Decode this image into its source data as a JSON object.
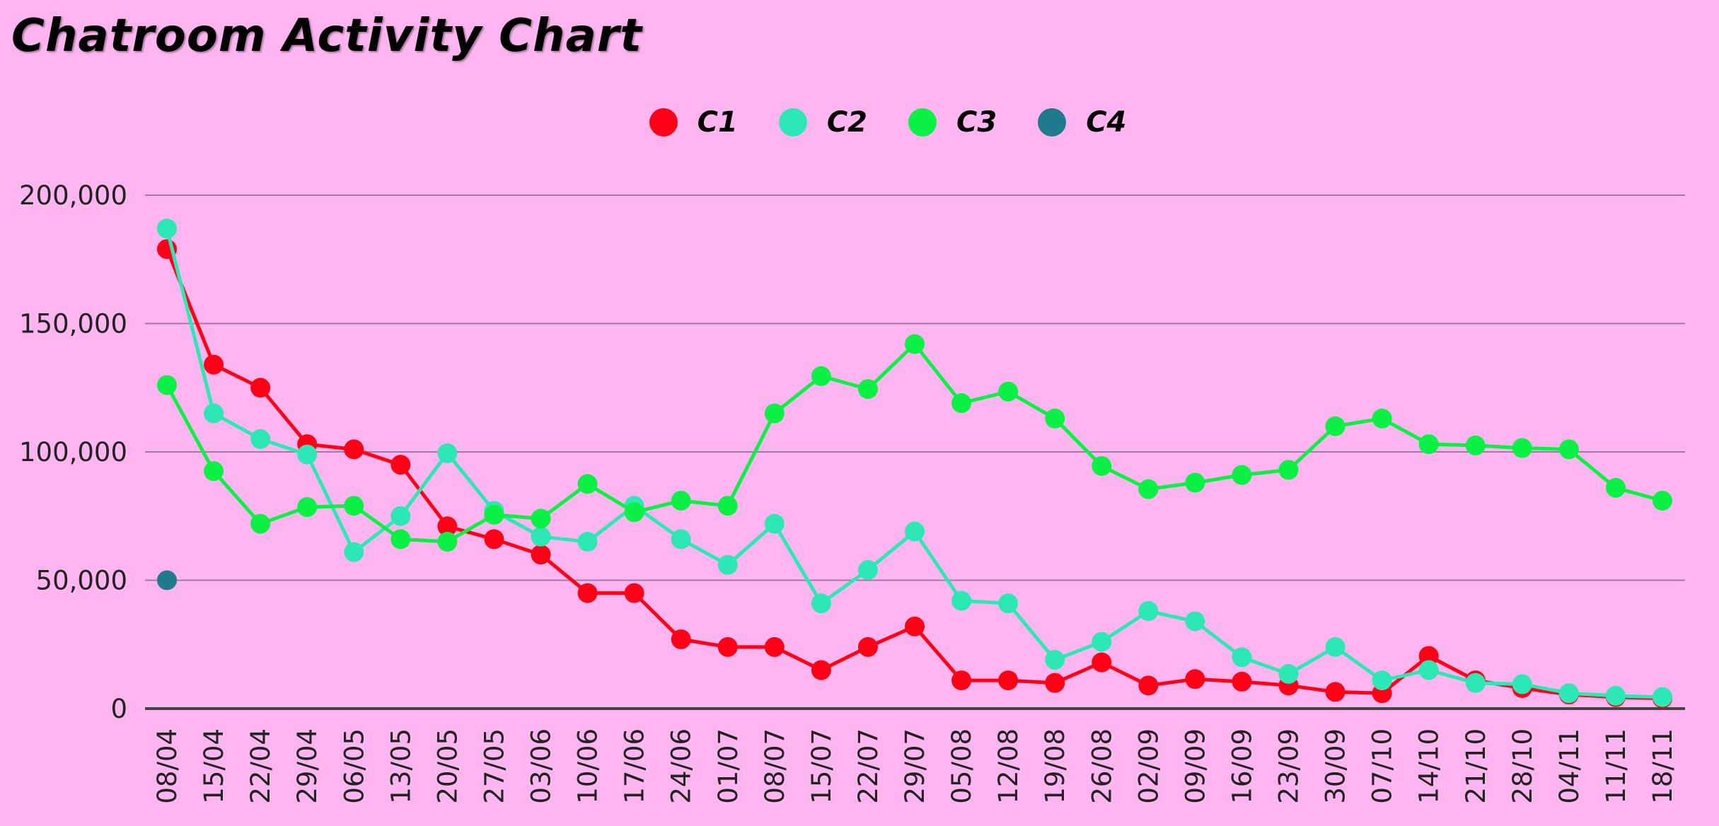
{
  "chart_data": {
    "type": "line",
    "title": "Chatroom Activity Chart",
    "xlabel": "",
    "ylabel": "",
    "ylim": [
      0,
      200000
    ],
    "yticks": [
      0,
      50000,
      100000,
      150000,
      200000
    ],
    "ytick_labels": [
      "0",
      "50,000",
      "100,000",
      "150,000",
      "200,000"
    ],
    "grid": true,
    "legend_position": "top-center",
    "categories": [
      "08/04",
      "15/04",
      "22/04",
      "29/04",
      "06/05",
      "13/05",
      "20/05",
      "27/05",
      "03/06",
      "10/06",
      "17/06",
      "24/06",
      "01/07",
      "08/07",
      "15/07",
      "22/07",
      "29/07",
      "05/08",
      "12/08",
      "19/08",
      "26/08",
      "02/09",
      "09/09",
      "16/09",
      "23/09",
      "30/09",
      "07/10",
      "14/10",
      "21/10",
      "28/10",
      "04/11",
      "11/11",
      "18/11"
    ],
    "series": [
      {
        "name": "C1",
        "color": "#ff0016",
        "values": [
          179000,
          134000,
          125000,
          103000,
          101000,
          95000,
          71000,
          66000,
          60000,
          45000,
          45000,
          27000,
          24000,
          24000,
          15000,
          24000,
          32000,
          11000,
          11000,
          10000,
          18000,
          9000,
          11500,
          10500,
          9000,
          6500,
          6000,
          20500,
          11000,
          8000,
          5500,
          4500,
          4000
        ]
      },
      {
        "name": "C2",
        "color": "#2de8b4",
        "values": [
          187000,
          115000,
          105000,
          99000,
          61000,
          75000,
          99500,
          77000,
          67000,
          65000,
          79000,
          66000,
          56000,
          72000,
          41000,
          54000,
          69000,
          42000,
          41000,
          19000,
          26000,
          38000,
          34000,
          20000,
          13500,
          24000,
          11000,
          15000,
          10000,
          9500,
          6000,
          5000,
          4500
        ]
      },
      {
        "name": "C3",
        "color": "#0af045",
        "values": [
          126000,
          92500,
          72000,
          78500,
          79000,
          66000,
          65000,
          75500,
          74000,
          87500,
          76500,
          81000,
          79000,
          115000,
          129500,
          124500,
          142000,
          119000,
          123500,
          113000,
          94500,
          85500,
          88000,
          91000,
          93000,
          110000,
          113000,
          103000,
          102500,
          101500,
          101000,
          86000,
          81000
        ]
      },
      {
        "name": "C4",
        "color": "#1f7a8c",
        "values": [
          50000,
          null,
          null,
          null,
          null,
          null,
          null,
          null,
          null,
          null,
          null,
          null,
          null,
          null,
          null,
          null,
          null,
          null,
          null,
          null,
          null,
          null,
          null,
          null,
          null,
          null,
          null,
          null,
          null,
          null,
          null,
          null,
          null
        ]
      }
    ]
  }
}
